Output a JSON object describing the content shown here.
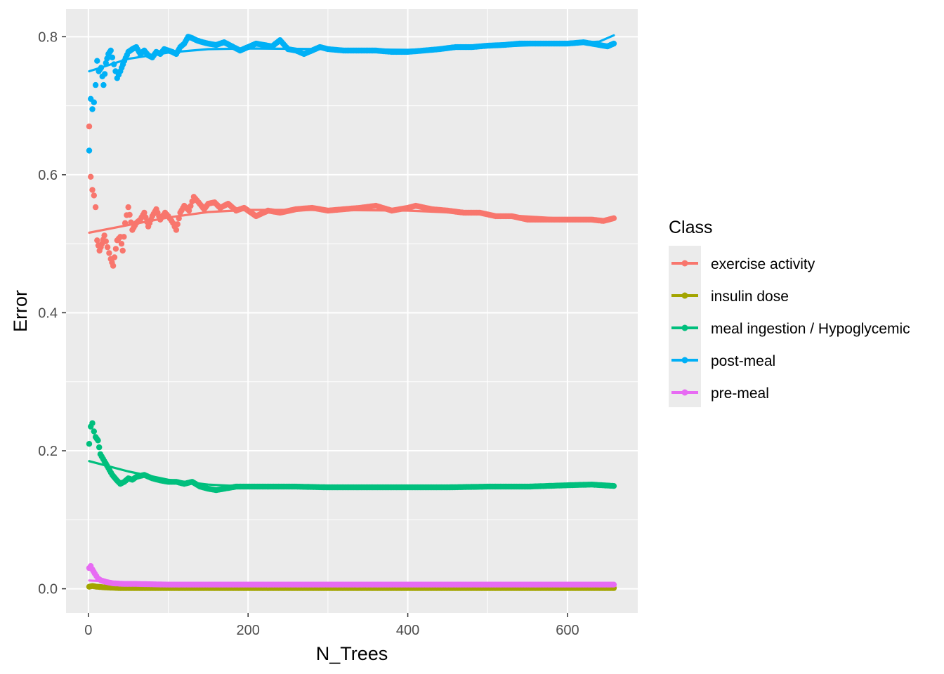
{
  "chart_data": {
    "type": "line",
    "xlabel": "N_Trees",
    "ylabel": "Error",
    "xlim": [
      -28,
      688
    ],
    "ylim": [
      -0.035,
      0.84
    ],
    "x_ticks": [
      0,
      200,
      400,
      600
    ],
    "x_tick_labels": [
      "0",
      "200",
      "400",
      "600"
    ],
    "y_ticks": [
      0.0,
      0.2,
      0.4,
      0.6,
      0.8
    ],
    "y_tick_labels": [
      "0.0",
      "0.2",
      "0.4",
      "0.6",
      "0.8"
    ],
    "grid": true,
    "legend": {
      "title": "Class",
      "placement": "right"
    },
    "series": [
      {
        "name": "exercise activity",
        "color": "#F8766D",
        "points": [
          [
            1,
            0.67
          ],
          [
            3,
            0.597
          ],
          [
            5,
            0.578
          ],
          [
            7,
            0.57
          ],
          [
            9,
            0.553
          ],
          [
            11,
            0.505
          ],
          [
            14,
            0.49
          ],
          [
            17,
            0.5
          ],
          [
            20,
            0.512
          ],
          [
            24,
            0.495
          ],
          [
            28,
            0.478
          ],
          [
            31,
            0.468
          ],
          [
            36,
            0.505
          ],
          [
            40,
            0.51
          ],
          [
            43,
            0.49
          ],
          [
            46,
            0.53
          ],
          [
            50,
            0.553
          ],
          [
            55,
            0.52
          ],
          [
            60,
            0.53
          ],
          [
            65,
            0.535
          ],
          [
            70,
            0.545
          ],
          [
            75,
            0.525
          ],
          [
            80,
            0.54
          ],
          [
            85,
            0.55
          ],
          [
            90,
            0.535
          ],
          [
            96,
            0.545
          ],
          [
            100,
            0.54
          ],
          [
            106,
            0.53
          ],
          [
            110,
            0.52
          ],
          [
            115,
            0.545
          ],
          [
            120,
            0.555
          ],
          [
            126,
            0.548
          ],
          [
            132,
            0.568
          ],
          [
            138,
            0.56
          ],
          [
            145,
            0.55
          ],
          [
            150,
            0.558
          ],
          [
            158,
            0.56
          ],
          [
            165,
            0.552
          ],
          [
            175,
            0.558
          ],
          [
            185,
            0.548
          ],
          [
            195,
            0.552
          ],
          [
            210,
            0.54
          ],
          [
            225,
            0.548
          ],
          [
            240,
            0.545
          ],
          [
            260,
            0.55
          ],
          [
            280,
            0.552
          ],
          [
            300,
            0.548
          ],
          [
            320,
            0.55
          ],
          [
            340,
            0.552
          ],
          [
            360,
            0.555
          ],
          [
            380,
            0.548
          ],
          [
            400,
            0.552
          ],
          [
            410,
            0.555
          ],
          [
            430,
            0.55
          ],
          [
            450,
            0.548
          ],
          [
            470,
            0.545
          ],
          [
            490,
            0.545
          ],
          [
            510,
            0.54
          ],
          [
            530,
            0.54
          ],
          [
            550,
            0.535
          ],
          [
            570,
            0.535
          ],
          [
            590,
            0.535
          ],
          [
            610,
            0.535
          ],
          [
            630,
            0.535
          ],
          [
            645,
            0.533
          ],
          [
            658,
            0.537
          ]
        ],
        "trend": [
          [
            1,
            0.516
          ],
          [
            50,
            0.527
          ],
          [
            100,
            0.538
          ],
          [
            150,
            0.546
          ],
          [
            200,
            0.549
          ],
          [
            300,
            0.549
          ],
          [
            400,
            0.548
          ],
          [
            500,
            0.543
          ],
          [
            600,
            0.536
          ],
          [
            658,
            0.535
          ]
        ]
      },
      {
        "name": "insulin dose",
        "color": "#A3A500",
        "points": [
          [
            1,
            0.003
          ],
          [
            5,
            0.004
          ],
          [
            10,
            0.003
          ],
          [
            20,
            0.002
          ],
          [
            40,
            0.001
          ],
          [
            80,
            0.001
          ],
          [
            150,
            0.001
          ],
          [
            250,
            0.001
          ],
          [
            350,
            0.001
          ],
          [
            450,
            0.001
          ],
          [
            550,
            0.001
          ],
          [
            658,
            0.001
          ]
        ],
        "trend": [
          [
            1,
            0.002
          ],
          [
            100,
            0.001
          ],
          [
            658,
            0.001
          ]
        ]
      },
      {
        "name": "meal ingestion / Hypoglycemic",
        "color": "#00BF7D",
        "points": [
          [
            1,
            0.21
          ],
          [
            3,
            0.235
          ],
          [
            5,
            0.24
          ],
          [
            7,
            0.228
          ],
          [
            9,
            0.22
          ],
          [
            12,
            0.215
          ],
          [
            15,
            0.195
          ],
          [
            20,
            0.185
          ],
          [
            25,
            0.175
          ],
          [
            30,
            0.165
          ],
          [
            35,
            0.158
          ],
          [
            40,
            0.152
          ],
          [
            45,
            0.155
          ],
          [
            50,
            0.16
          ],
          [
            55,
            0.158
          ],
          [
            60,
            0.162
          ],
          [
            70,
            0.165
          ],
          [
            80,
            0.16
          ],
          [
            90,
            0.157
          ],
          [
            100,
            0.155
          ],
          [
            110,
            0.155
          ],
          [
            120,
            0.152
          ],
          [
            130,
            0.155
          ],
          [
            140,
            0.148
          ],
          [
            150,
            0.145
          ],
          [
            160,
            0.143
          ],
          [
            170,
            0.145
          ],
          [
            185,
            0.148
          ],
          [
            200,
            0.148
          ],
          [
            230,
            0.148
          ],
          [
            260,
            0.148
          ],
          [
            300,
            0.147
          ],
          [
            350,
            0.147
          ],
          [
            400,
            0.147
          ],
          [
            450,
            0.147
          ],
          [
            500,
            0.148
          ],
          [
            550,
            0.148
          ],
          [
            600,
            0.15
          ],
          [
            630,
            0.151
          ],
          [
            658,
            0.149
          ]
        ],
        "trend": [
          [
            1,
            0.185
          ],
          [
            50,
            0.17
          ],
          [
            100,
            0.158
          ],
          [
            150,
            0.151
          ],
          [
            200,
            0.148
          ],
          [
            300,
            0.147
          ],
          [
            400,
            0.147
          ],
          [
            500,
            0.148
          ],
          [
            600,
            0.149
          ],
          [
            658,
            0.149
          ]
        ]
      },
      {
        "name": "post-meal",
        "color": "#00B0F6",
        "points": [
          [
            1,
            0.635
          ],
          [
            3,
            0.71
          ],
          [
            5,
            0.695
          ],
          [
            7,
            0.705
          ],
          [
            9,
            0.73
          ],
          [
            11,
            0.765
          ],
          [
            13,
            0.75
          ],
          [
            16,
            0.755
          ],
          [
            19,
            0.73
          ],
          [
            22,
            0.762
          ],
          [
            25,
            0.775
          ],
          [
            28,
            0.78
          ],
          [
            32,
            0.76
          ],
          [
            36,
            0.74
          ],
          [
            40,
            0.75
          ],
          [
            45,
            0.765
          ],
          [
            50,
            0.778
          ],
          [
            55,
            0.782
          ],
          [
            60,
            0.785
          ],
          [
            65,
            0.775
          ],
          [
            70,
            0.78
          ],
          [
            75,
            0.773
          ],
          [
            80,
            0.77
          ],
          [
            85,
            0.778
          ],
          [
            90,
            0.775
          ],
          [
            95,
            0.782
          ],
          [
            100,
            0.78
          ],
          [
            105,
            0.778
          ],
          [
            110,
            0.775
          ],
          [
            115,
            0.785
          ],
          [
            120,
            0.79
          ],
          [
            125,
            0.8
          ],
          [
            130,
            0.798
          ],
          [
            135,
            0.795
          ],
          [
            140,
            0.793
          ],
          [
            150,
            0.79
          ],
          [
            160,
            0.788
          ],
          [
            170,
            0.792
          ],
          [
            180,
            0.786
          ],
          [
            190,
            0.78
          ],
          [
            200,
            0.785
          ],
          [
            210,
            0.79
          ],
          [
            220,
            0.788
          ],
          [
            230,
            0.786
          ],
          [
            240,
            0.795
          ],
          [
            250,
            0.782
          ],
          [
            260,
            0.78
          ],
          [
            270,
            0.775
          ],
          [
            280,
            0.78
          ],
          [
            290,
            0.785
          ],
          [
            300,
            0.782
          ],
          [
            320,
            0.78
          ],
          [
            340,
            0.78
          ],
          [
            360,
            0.78
          ],
          [
            380,
            0.778
          ],
          [
            400,
            0.778
          ],
          [
            420,
            0.78
          ],
          [
            440,
            0.782
          ],
          [
            460,
            0.785
          ],
          [
            480,
            0.785
          ],
          [
            500,
            0.787
          ],
          [
            520,
            0.788
          ],
          [
            540,
            0.79
          ],
          [
            560,
            0.79
          ],
          [
            580,
            0.79
          ],
          [
            600,
            0.79
          ],
          [
            620,
            0.792
          ],
          [
            640,
            0.788
          ],
          [
            650,
            0.786
          ],
          [
            658,
            0.79
          ]
        ],
        "trend": [
          [
            1,
            0.75
          ],
          [
            50,
            0.768
          ],
          [
            100,
            0.777
          ],
          [
            150,
            0.782
          ],
          [
            200,
            0.783
          ],
          [
            300,
            0.782
          ],
          [
            400,
            0.781
          ],
          [
            500,
            0.785
          ],
          [
            600,
            0.79
          ],
          [
            640,
            0.793
          ],
          [
            658,
            0.802
          ]
        ]
      },
      {
        "name": "pre-meal",
        "color": "#E76BF3",
        "points": [
          [
            1,
            0.03
          ],
          [
            3,
            0.033
          ],
          [
            5,
            0.028
          ],
          [
            8,
            0.022
          ],
          [
            12,
            0.015
          ],
          [
            16,
            0.012
          ],
          [
            22,
            0.01
          ],
          [
            30,
            0.008
          ],
          [
            45,
            0.007
          ],
          [
            60,
            0.007
          ],
          [
            100,
            0.006
          ],
          [
            150,
            0.006
          ],
          [
            200,
            0.006
          ],
          [
            300,
            0.006
          ],
          [
            400,
            0.006
          ],
          [
            500,
            0.006
          ],
          [
            600,
            0.006
          ],
          [
            658,
            0.006
          ]
        ],
        "trend": [
          [
            1,
            0.012
          ],
          [
            50,
            0.009
          ],
          [
            100,
            0.007
          ],
          [
            200,
            0.006
          ],
          [
            658,
            0.006
          ]
        ]
      }
    ]
  }
}
